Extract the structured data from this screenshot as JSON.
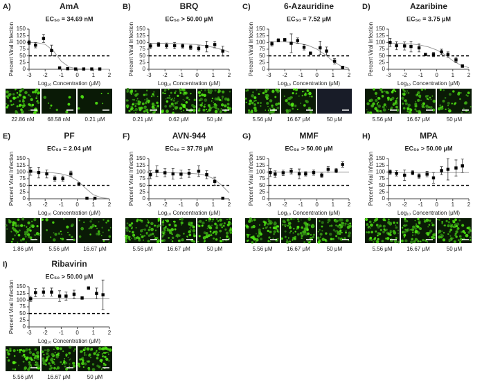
{
  "chart_data": [
    {
      "type": "scatter",
      "panel": "A)",
      "title": "AmA",
      "annotation": "EC₅₀ = 34.69 nM",
      "ylabel": "Percent Viral Infection",
      "xlabel": "Log₁₀ Concentration (μM)",
      "x": [
        -3,
        -2.6,
        -2.1,
        -1.6,
        -1.1,
        -0.6,
        -0.1,
        0.4,
        0.9,
        1.4
      ],
      "values": [
        100,
        90,
        115,
        70,
        5,
        2,
        1,
        1,
        1,
        1
      ],
      "errors": [
        8,
        10,
        15,
        20,
        2,
        1,
        1,
        1,
        1,
        1
      ],
      "fit_x": [
        -3,
        -2.5,
        -2,
        -1.5,
        -1,
        -0.5,
        0,
        0.5,
        1,
        1.5,
        2
      ],
      "fit": [
        100,
        99,
        93,
        70,
        30,
        8,
        2,
        1,
        0,
        0,
        0
      ],
      "reference_line": 50,
      "xlim": [
        -3,
        2
      ],
      "ylim": [
        0,
        150
      ],
      "xticks": [
        -3,
        -2,
        -1,
        0,
        1,
        2
      ],
      "yticks": [
        0,
        25,
        50,
        75,
        100,
        125,
        150
      ],
      "images": [
        "22.86 nM",
        "68.58 nM",
        "0.21 μM"
      ]
    },
    {
      "type": "scatter",
      "panel": "B)",
      "title": "BRQ",
      "annotation": "EC₅₀ > 50.00 μM",
      "ylabel": "Percent Viral Infection",
      "xlabel": "Log₁₀ Concentration (μM)",
      "x": [
        -2.9,
        -2.4,
        -1.9,
        -1.4,
        -0.9,
        -0.4,
        0.1,
        0.6,
        1.1,
        1.6
      ],
      "values": [
        87,
        92,
        88,
        88,
        87,
        82,
        78,
        85,
        92,
        68
      ],
      "errors": [
        10,
        8,
        10,
        12,
        8,
        8,
        10,
        20,
        12,
        18
      ],
      "fit_x": [
        -3,
        -2.5,
        -2,
        -1.5,
        -1,
        -0.5,
        0,
        0.5,
        1,
        1.5,
        2
      ],
      "fit": [
        97,
        97,
        97,
        96,
        95,
        94,
        92,
        88,
        82,
        74,
        64
      ],
      "reference_line": 50,
      "xlim": [
        -3,
        2
      ],
      "ylim": [
        0,
        150
      ],
      "xticks": [
        -3,
        -2,
        -1,
        0,
        1,
        2
      ],
      "yticks": [
        0,
        25,
        50,
        75,
        100,
        125,
        150
      ],
      "images": [
        "0.21 μM",
        "0.62 μM",
        "50 μM"
      ]
    },
    {
      "type": "scatter",
      "panel": "C)",
      "title": "6-Azauridine",
      "annotation": "EC₅₀ = 7.52 μM",
      "ylabel": "Percent Viral Infection",
      "xlabel": "Log₁₀ Concentration (μM)",
      "x": [
        -2.8,
        -2.4,
        -2,
        -1.6,
        -1.2,
        -0.8,
        -0.4,
        0.2,
        0.6,
        1.1,
        1.6
      ],
      "values": [
        95,
        108,
        110,
        97,
        107,
        82,
        60,
        80,
        68,
        30,
        7
      ],
      "errors": [
        8,
        6,
        5,
        35,
        10,
        10,
        5,
        25,
        15,
        10,
        5
      ],
      "fit_x": [
        -3,
        -2.5,
        -2,
        -1.5,
        -1,
        -0.5,
        0,
        0.5,
        1,
        1.5,
        2
      ],
      "fit": [
        103,
        103,
        102,
        100,
        96,
        88,
        75,
        55,
        30,
        12,
        4
      ],
      "reference_line": 50,
      "xlim": [
        -3,
        2
      ],
      "ylim": [
        0,
        150
      ],
      "xticks": [
        -3,
        -2,
        -1,
        0,
        1,
        2
      ],
      "yticks": [
        0,
        25,
        50,
        75,
        100,
        125,
        150
      ],
      "images": [
        "5.56 μM",
        "16.67 μM",
        "50 μM"
      ]
    },
    {
      "type": "scatter",
      "panel": "D)",
      "title": "Azaribine",
      "annotation": "EC₅₀ = 3.75 μM",
      "ylabel": "Percent Viral Infection",
      "xlabel": "Log₁₀ Concentration (μM)",
      "x": [
        -2.9,
        -2.5,
        -2,
        -1.6,
        -1.1,
        -0.7,
        -0.2,
        0.3,
        0.7,
        1.2,
        1.6
      ],
      "values": [
        100,
        88,
        87,
        85,
        80,
        55,
        55,
        65,
        55,
        35,
        12
      ],
      "errors": [
        15,
        15,
        15,
        20,
        15,
        5,
        8,
        10,
        10,
        10,
        5
      ],
      "fit_x": [
        -3,
        -2.5,
        -2,
        -1.5,
        -1,
        -0.5,
        0,
        0.5,
        1,
        1.5,
        2
      ],
      "fit": [
        98,
        97,
        96,
        94,
        90,
        83,
        72,
        55,
        32,
        15,
        6
      ],
      "reference_line": 50,
      "xlim": [
        -3,
        2
      ],
      "ylim": [
        0,
        150
      ],
      "xticks": [
        -3,
        -2,
        -1,
        0,
        1,
        2
      ],
      "yticks": [
        0,
        25,
        50,
        75,
        100,
        125,
        150
      ],
      "images": [
        "5.56 μM",
        "16.67 μM",
        "50 μM"
      ]
    },
    {
      "type": "scatter",
      "panel": "E)",
      "title": "PF",
      "annotation": "EC₅₀ = 2.04 μM",
      "ylabel": "Percent Viral Infection",
      "xlabel": "Log₁₀ Concentration (μM)",
      "x": [
        -2.9,
        -2.4,
        -1.9,
        -1.4,
        -0.9,
        -0.4,
        0.1,
        0.6,
        1.1
      ],
      "values": [
        103,
        98,
        93,
        75,
        75,
        93,
        55,
        2,
        2
      ],
      "errors": [
        15,
        20,
        15,
        10,
        10,
        10,
        5,
        2,
        2
      ],
      "fit_x": [
        -3,
        -2.5,
        -2,
        -1.5,
        -1,
        -0.5,
        0,
        0.5,
        1,
        1.5,
        2
      ],
      "fit": [
        101,
        100,
        99,
        97,
        93,
        85,
        68,
        40,
        15,
        4,
        1
      ],
      "reference_line": 50,
      "xlim": [
        -3,
        2
      ],
      "ylim": [
        0,
        150
      ],
      "xticks": [
        -3,
        -2,
        -1,
        0,
        1,
        2
      ],
      "yticks": [
        0,
        25,
        50,
        75,
        100,
        125,
        150
      ],
      "images": [
        "1.86 μM",
        "5.56 μM",
        "16.67 μM"
      ]
    },
    {
      "type": "scatter",
      "panel": "F)",
      "title": "AVN-944",
      "annotation": "EC₅₀ = 37.78 μM",
      "ylabel": "Percent Viral Infection",
      "xlabel": "Log₁₀ Concentration (μM)",
      "x": [
        -2.9,
        -2.5,
        -2,
        -1.5,
        -1,
        -0.5,
        0.1,
        0.6,
        1.1,
        1.6
      ],
      "values": [
        90,
        103,
        97,
        93,
        92,
        95,
        103,
        90,
        65,
        2
      ],
      "errors": [
        15,
        20,
        15,
        20,
        15,
        15,
        20,
        15,
        15,
        2
      ],
      "fit_x": [
        -3,
        -2.5,
        -2,
        -1.5,
        -1,
        -0.5,
        0,
        0.5,
        1,
        1.5,
        2
      ],
      "fit": [
        97,
        97,
        97,
        97,
        96,
        95,
        93,
        88,
        76,
        52,
        22
      ],
      "reference_line": 50,
      "xlim": [
        -3,
        2
      ],
      "ylim": [
        0,
        150
      ],
      "xticks": [
        -3,
        -2,
        -1,
        0,
        1,
        2
      ],
      "yticks": [
        0,
        25,
        50,
        75,
        100,
        125,
        150
      ],
      "images": [
        "5.56 μM",
        "16.67 μM",
        "50 μM"
      ]
    },
    {
      "type": "scatter",
      "panel": "G)",
      "title": "MMF",
      "annotation": "EC₅₀ > 50.00 μM",
      "ylabel": "Percent Viral Infection",
      "xlabel": "Log₁₀ Concentration (μM)",
      "x": [
        -2.9,
        -2.6,
        -2.1,
        -1.6,
        -1.1,
        -0.7,
        -0.2,
        0.3,
        0.7,
        1.2,
        1.6
      ],
      "values": [
        98,
        92,
        97,
        103,
        93,
        93,
        98,
        88,
        110,
        105,
        128
      ],
      "errors": [
        15,
        12,
        10,
        10,
        18,
        8,
        10,
        8,
        10,
        8,
        10
      ],
      "fit_x": [
        -3,
        -2.5,
        -2,
        -1.5,
        -1,
        -0.5,
        0,
        0.5,
        1,
        1.5,
        2
      ],
      "fit": [
        100,
        100,
        100,
        100,
        100,
        100,
        100,
        100,
        100,
        100,
        100
      ],
      "reference_line": 50,
      "xlim": [
        -3,
        2
      ],
      "ylim": [
        0,
        150
      ],
      "xticks": [
        -3,
        -2,
        -1,
        0,
        1,
        2
      ],
      "yticks": [
        0,
        25,
        50,
        75,
        100,
        125,
        150
      ],
      "images": [
        "5.56 μM",
        "16.67 μM",
        "50 μM"
      ]
    },
    {
      "type": "scatter",
      "panel": "H)",
      "title": "MPA",
      "annotation": "EC₅₀ > 50.00 μM",
      "ylabel": "Percent Viral Infection",
      "xlabel": "Log₁₀ Concentration (μM)",
      "x": [
        -2.9,
        -2.5,
        -2,
        -1.5,
        -1.1,
        -0.6,
        -0.2,
        0.3,
        0.7,
        1.2,
        1.6
      ],
      "values": [
        100,
        95,
        88,
        97,
        85,
        92,
        78,
        105,
        110,
        115,
        123
      ],
      "errors": [
        8,
        10,
        20,
        8,
        8,
        10,
        20,
        15,
        40,
        30,
        25
      ],
      "fit_x": [
        -3,
        -2.5,
        -2,
        -1.5,
        -1,
        -0.5,
        0,
        0.5,
        1,
        1.5,
        2
      ],
      "fit": [
        98,
        98,
        98,
        98,
        98,
        98,
        98,
        98,
        98,
        98,
        98
      ],
      "reference_line": 50,
      "xlim": [
        -3,
        2
      ],
      "ylim": [
        0,
        150
      ],
      "xticks": [
        -3,
        -2,
        -1,
        0,
        1,
        2
      ],
      "yticks": [
        0,
        25,
        50,
        75,
        100,
        125,
        150
      ],
      "images": [
        "5.56 μM",
        "16.67 μM",
        "50 μM"
      ]
    },
    {
      "type": "scatter",
      "panel": "I)",
      "title": "Ribavirin",
      "annotation": "EC₅₀ > 50.00 μM",
      "ylabel": "Percent Viral Infection",
      "xlabel": "Log₁₀ Concentration (μM)",
      "x": [
        -2.9,
        -2.6,
        -2.1,
        -1.6,
        -1.1,
        -0.7,
        -0.2,
        0.3,
        0.7,
        1.2,
        1.6
      ],
      "values": [
        105,
        128,
        130,
        130,
        115,
        115,
        122,
        108,
        145,
        125,
        120
      ],
      "errors": [
        10,
        15,
        15,
        15,
        20,
        15,
        15,
        5,
        5,
        20,
        55
      ],
      "fit_x": [
        -3,
        -2.5,
        -2,
        -1.5,
        -1,
        -0.5,
        0,
        0.5,
        1,
        1.5,
        2
      ],
      "fit": [
        105,
        105,
        105,
        105,
        105,
        105,
        105,
        105,
        105,
        105,
        105
      ],
      "reference_line": 50,
      "xlim": [
        -3,
        2
      ],
      "ylim": [
        0,
        150
      ],
      "xticks": [
        -3,
        -2,
        -1,
        0,
        1,
        2
      ],
      "yticks": [
        0,
        25,
        50,
        75,
        100,
        125,
        150
      ],
      "images": [
        "5.56 μM",
        "16.67 μM",
        "50 μM"
      ]
    }
  ]
}
